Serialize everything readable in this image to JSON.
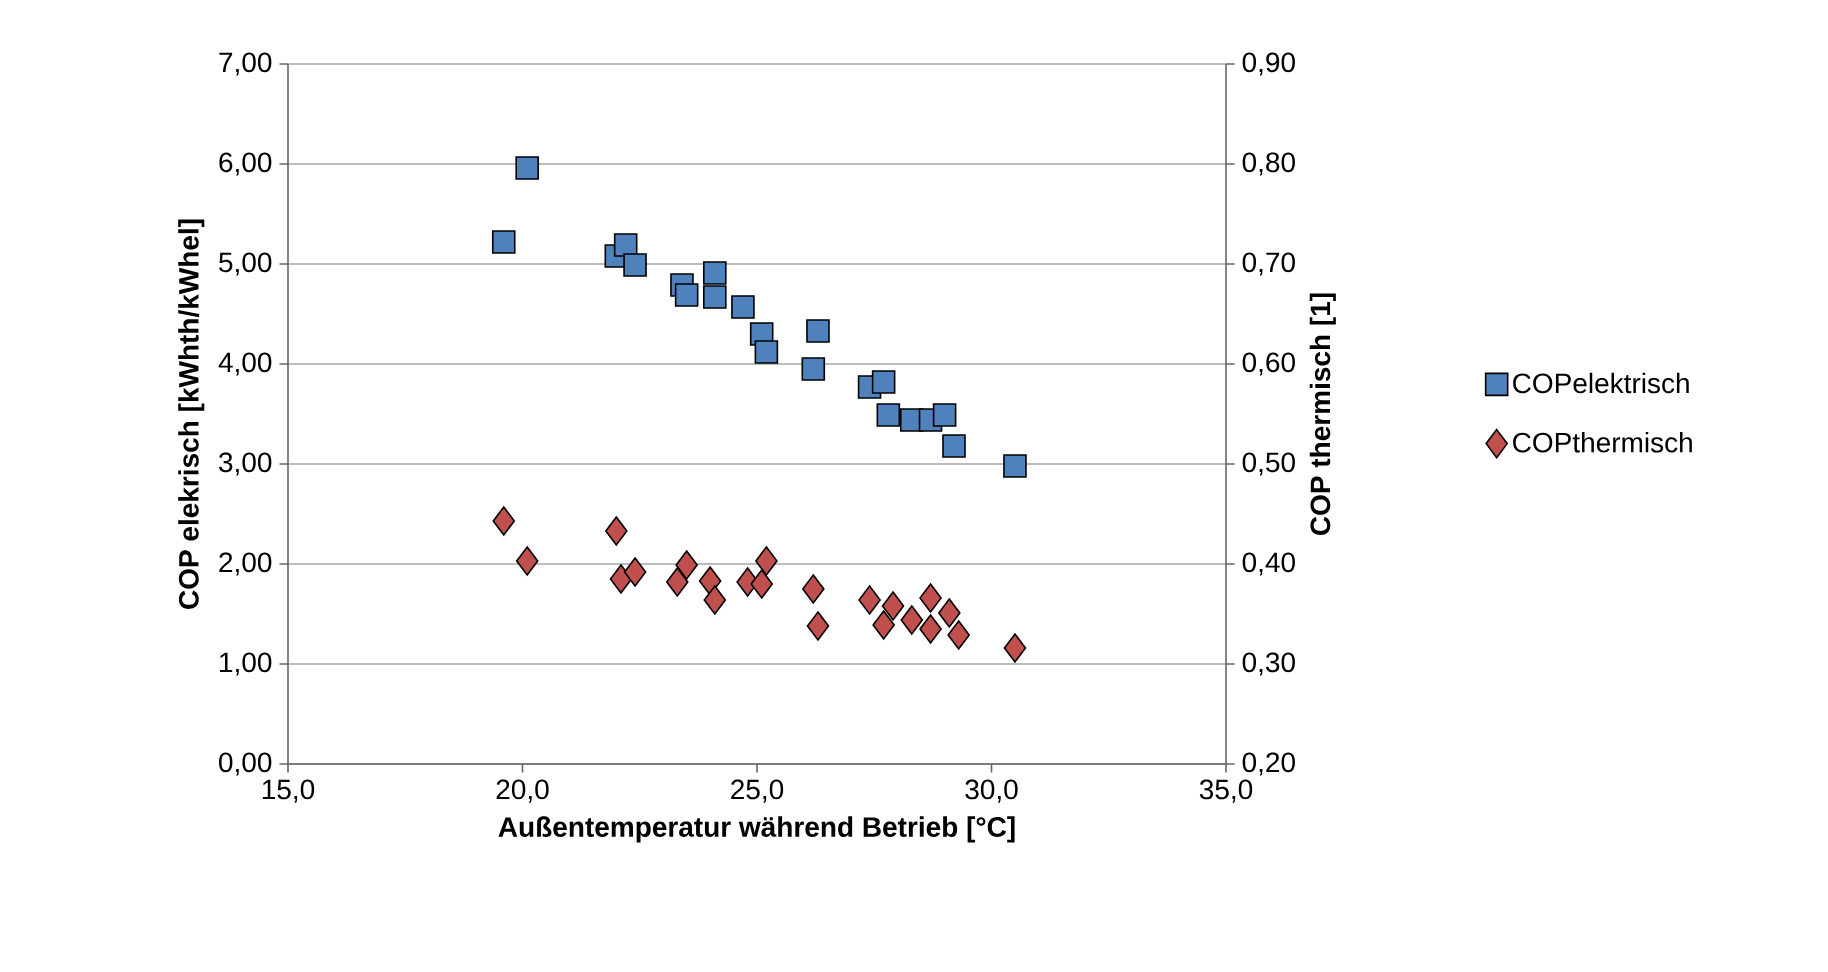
{
  "chart_data": {
    "type": "scatter",
    "xlabel": "Außentemperatur während Betrieb [°C]",
    "ylabel": "COP elekrisch [kWhth/kWhel]",
    "y2label": "COP thermisch [1]",
    "xlim": [
      15,
      35
    ],
    "xticks": [
      {
        "value": 15,
        "label": "15,0"
      },
      {
        "value": 20,
        "label": "20,0"
      },
      {
        "value": 25,
        "label": "25,0"
      },
      {
        "value": 30,
        "label": "30,0"
      },
      {
        "value": 35,
        "label": "35,0"
      }
    ],
    "ylim": [
      0,
      7
    ],
    "yticks": [
      {
        "value": 0,
        "label": "0,00"
      },
      {
        "value": 1,
        "label": "1,00"
      },
      {
        "value": 2,
        "label": "2,00"
      },
      {
        "value": 3,
        "label": "3,00"
      },
      {
        "value": 4,
        "label": "4,00"
      },
      {
        "value": 5,
        "label": "5,00"
      },
      {
        "value": 6,
        "label": "6,00"
      },
      {
        "value": 7,
        "label": "7,00"
      }
    ],
    "y2lim": [
      0.2,
      0.9
    ],
    "y2ticks": [
      {
        "value": 0.2,
        "label": "0,20"
      },
      {
        "value": 0.3,
        "label": "0,30"
      },
      {
        "value": 0.4,
        "label": "0,40"
      },
      {
        "value": 0.5,
        "label": "0,50"
      },
      {
        "value": 0.6,
        "label": "0,60"
      },
      {
        "value": 0.7,
        "label": "0,70"
      },
      {
        "value": 0.8,
        "label": "0,80"
      },
      {
        "value": 0.9,
        "label": "0,90"
      }
    ],
    "grid": "y",
    "legend": "right",
    "series": [
      {
        "name": "COPelektrisch",
        "color": "#4f81bd",
        "marker": "square",
        "x": [
          19.6,
          20.1,
          22.0,
          22.2,
          22.4,
          23.4,
          24.1,
          23.5,
          24.1,
          24.7,
          25.1,
          25.2,
          26.3,
          26.2,
          27.4,
          27.7,
          27.8,
          28.3,
          28.7,
          29.0,
          29.2,
          30.5
        ],
        "values": [
          5.22,
          5.96,
          5.08,
          5.19,
          4.99,
          4.79,
          4.91,
          4.69,
          4.67,
          4.57,
          4.3,
          4.12,
          4.33,
          3.95,
          3.77,
          3.82,
          3.49,
          3.44,
          3.44,
          3.49,
          3.18,
          2.98
        ]
      },
      {
        "name": "COPthermisch",
        "color": "#c0504d",
        "marker": "diamond",
        "axis": "y2",
        "x": [
          19.6,
          20.1,
          22.0,
          22.1,
          22.4,
          23.3,
          23.5,
          24.0,
          24.1,
          24.8,
          25.1,
          25.2,
          26.2,
          26.3,
          27.4,
          27.7,
          27.9,
          28.3,
          28.7,
          28.7,
          29.1,
          29.3,
          30.5
        ],
        "values": [
          0.443,
          0.403,
          0.433,
          0.385,
          0.392,
          0.382,
          0.399,
          0.383,
          0.364,
          0.382,
          0.38,
          0.403,
          0.375,
          0.338,
          0.364,
          0.339,
          0.358,
          0.344,
          0.366,
          0.335,
          0.351,
          0.329,
          0.316
        ]
      }
    ]
  }
}
